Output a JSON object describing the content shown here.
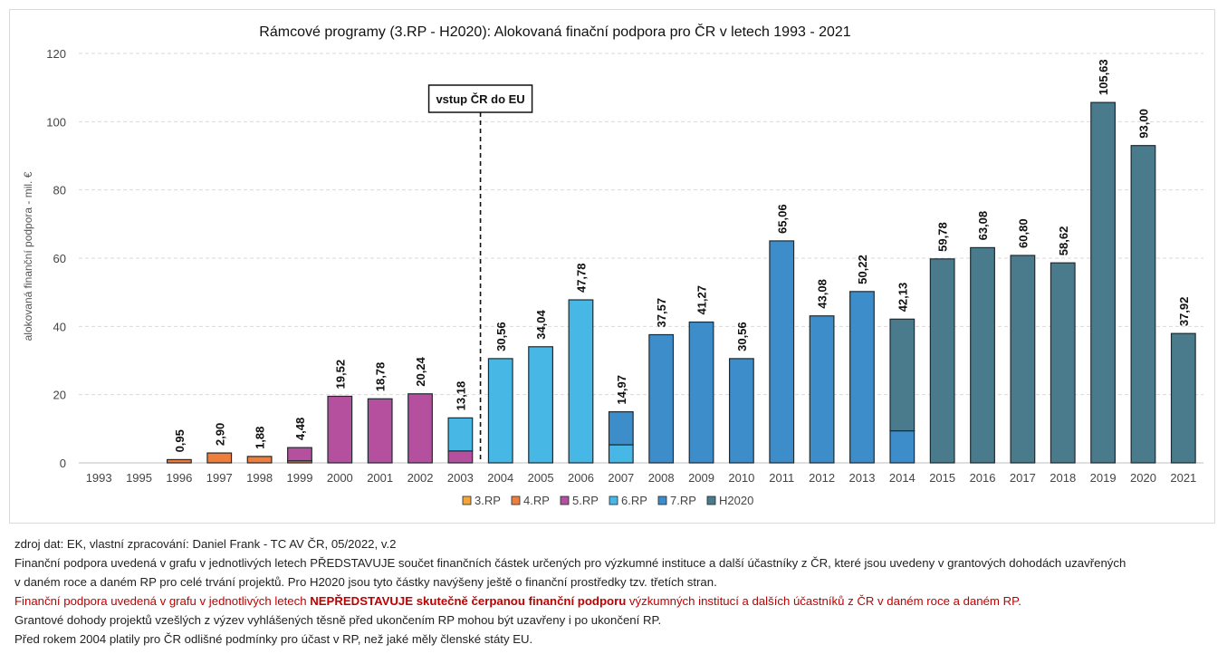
{
  "chart_data": {
    "type": "bar",
    "stacked": true,
    "title": "Rámcové programy (3.RP - H2020): Alokovaná finační podpora pro ČR v letech 1993 - 2021",
    "ylabel": "alokovaná  finanční podpora - mil. €",
    "xlabel": "",
    "ylim": [
      0,
      120
    ],
    "yticks": [
      0,
      20,
      40,
      60,
      80,
      100,
      120
    ],
    "grid": true,
    "legend_position": "bottom",
    "categories": [
      "1993",
      "1995",
      "1996",
      "1997",
      "1998",
      "1999",
      "2000",
      "2001",
      "2002",
      "2003",
      "2004",
      "2005",
      "2006",
      "2007",
      "2008",
      "2009",
      "2010",
      "2011",
      "2012",
      "2013",
      "2014",
      "2015",
      "2016",
      "2017",
      "2018",
      "2019",
      "2020",
      "2021"
    ],
    "totals": [
      0,
      0,
      0.95,
      2.9,
      1.88,
      4.48,
      19.52,
      18.78,
      20.24,
      13.18,
      30.56,
      34.04,
      47.78,
      14.97,
      37.57,
      41.27,
      30.56,
      65.06,
      43.08,
      50.22,
      42.13,
      59.78,
      63.08,
      60.8,
      58.62,
      105.63,
      93.0,
      37.92
    ],
    "total_labels": [
      "",
      "",
      "0,95",
      "2,90",
      "1,88",
      "4,48",
      "19,52",
      "18,78",
      "20,24",
      "13,18",
      "30,56",
      "34,04",
      "47,78",
      "14,97",
      "37,57",
      "41,27",
      "30,56",
      "65,06",
      "43,08",
      "50,22",
      "42,13",
      "59,78",
      "63,08",
      "60,80",
      "58,62",
      "105,63",
      "93,00",
      "37,92"
    ],
    "series": [
      {
        "name": "3.RP",
        "color": "#f4a43a",
        "values": [
          0,
          0,
          0,
          0,
          0,
          0,
          0,
          0,
          0,
          0,
          0,
          0,
          0,
          0,
          0,
          0,
          0,
          0,
          0,
          0,
          0,
          0,
          0,
          0,
          0,
          0,
          0,
          0
        ]
      },
      {
        "name": "4.RP",
        "color": "#ef7d3c",
        "values": [
          0,
          0,
          0.95,
          2.9,
          1.88,
          0.6,
          0,
          0,
          0,
          0,
          0,
          0,
          0,
          0,
          0,
          0,
          0,
          0,
          0,
          0,
          0,
          0,
          0,
          0,
          0,
          0,
          0,
          0
        ]
      },
      {
        "name": "5.RP",
        "color": "#b5509f",
        "values": [
          0,
          0,
          0,
          0,
          0,
          3.88,
          19.52,
          18.78,
          20.24,
          3.5,
          0,
          0,
          0,
          0,
          0,
          0,
          0,
          0,
          0,
          0,
          0,
          0,
          0,
          0,
          0,
          0,
          0,
          0
        ]
      },
      {
        "name": "6.RP",
        "color": "#47b7e6",
        "values": [
          0,
          0,
          0,
          0,
          0,
          0,
          0,
          0,
          0,
          9.68,
          30.56,
          34.04,
          47.78,
          5.3,
          0,
          0,
          0,
          0,
          0,
          0,
          0,
          0,
          0,
          0,
          0,
          0,
          0,
          0
        ]
      },
      {
        "name": "7.RP",
        "color": "#3e8dcb",
        "values": [
          0,
          0,
          0,
          0,
          0,
          0,
          0,
          0,
          0,
          0,
          0,
          0,
          0,
          9.67,
          37.57,
          41.27,
          30.56,
          65.06,
          43.08,
          50.22,
          9.4,
          0,
          0,
          0,
          0,
          0,
          0,
          0
        ]
      },
      {
        "name": "H2020",
        "color": "#4a7b8c",
        "values": [
          0,
          0,
          0,
          0,
          0,
          0,
          0,
          0,
          0,
          0,
          0,
          0,
          0,
          0,
          0,
          0,
          0,
          0,
          0,
          0,
          32.73,
          59.78,
          63.08,
          60.8,
          58.62,
          105.63,
          93.0,
          37.92
        ]
      }
    ],
    "annotation": {
      "text": "vstup ČR do EU",
      "between": [
        "2003",
        "2004"
      ]
    }
  },
  "notes": {
    "source": "zdroj dat: EK, vlastní zpracování: Daniel Frank - TC AV ČR, 05/2022, v.2",
    "line1": "Finanční podpora  uvedená v grafu v jednotlivých letech PŘEDSTAVUJE součet finančních částek určených pro výzkumné instituce a další účastníky z ČR, které jsou uvedeny v grantových dohodách uzavřených",
    "line2": "v daném roce a daném RP pro celé trvání projektů. Pro H2020 jsou tyto částky navýšeny ještě o finanční prostředky tzv. třetích stran.",
    "red_pre": "Finanční podpora uvedená v grafu v jednotlivých letech ",
    "red_bold": "NEPŘEDSTAVUJE skutečně čerpanou finanční podporu",
    "red_post": " výzkumných institucí a dalších účastníků z ČR v daném roce a daném RP.",
    "line4": "Grantové dohody projektů vzešlých z výzev vyhlášených těsně před ukončením RP mohou být uzavřeny i po ukončení RP.",
    "line5": "Před rokem 2004 platily pro ČR odlišné podmínky pro účast v RP, než jaké měly členské státy EU."
  }
}
